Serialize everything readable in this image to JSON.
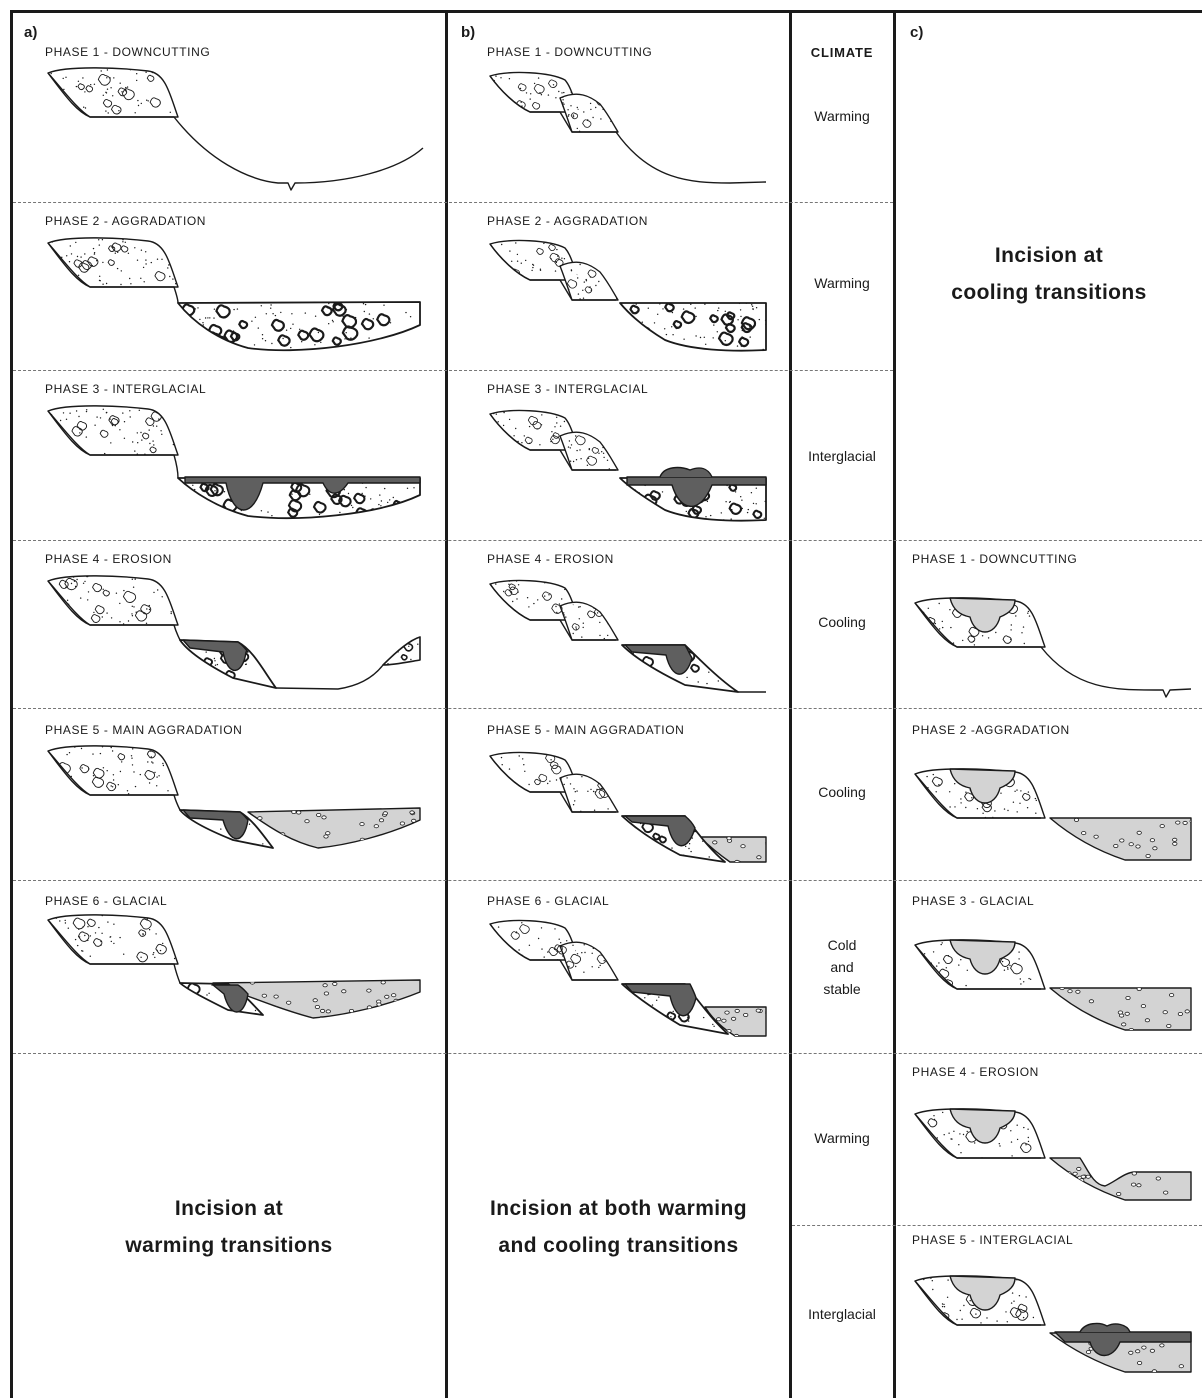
{
  "panels": {
    "a": {
      "tag": "a)",
      "phases": [
        "PHASE 1 - DOWNCUTTING",
        "PHASE 2 - AGGRADATION",
        "PHASE 3 - INTERGLACIAL",
        "PHASE 4 - EROSION",
        "PHASE 5 - MAIN AGGRADATION",
        "PHASE 6 - GLACIAL"
      ],
      "summary_line1": "Incision at",
      "summary_line2": "warming transitions"
    },
    "b": {
      "tag": "b)",
      "phases": [
        "PHASE 1 - DOWNCUTTING",
        "PHASE 2 - AGGRADATION",
        "PHASE 3 - INTERGLACIAL",
        "PHASE 4 - EROSION",
        "PHASE 5 - MAIN AGGRADATION",
        "PHASE 6 - GLACIAL"
      ],
      "summary_line1": "Incision at both warming",
      "summary_line2": "and cooling transitions"
    },
    "c": {
      "tag": "c)",
      "phases": [
        "PHASE 1 - DOWNCUTTING",
        "PHASE 2 -AGGRADATION",
        "PHASE 3 - GLACIAL",
        "PHASE 4 - EROSION",
        "PHASE 5 - INTERGLACIAL"
      ],
      "summary_line1": "Incision at",
      "summary_line2": "cooling transitions"
    }
  },
  "climate": {
    "heading": "CLIMATE",
    "ab_rows": [
      "Warming",
      "Warming",
      "Interglacial",
      "Cooling",
      "Cooling",
      "Cold|and|stable"
    ],
    "c_rows": [
      "Warming",
      "Interglacial"
    ]
  },
  "colors": {
    "outline": "#1a1a1a",
    "old_terrace_fill": "#ffffff",
    "coarse_gravel_fill": "#ffffff",
    "interglacial_fill": "#5f5f5f",
    "glacial_gravel_fill": "#d3d3d3"
  }
}
